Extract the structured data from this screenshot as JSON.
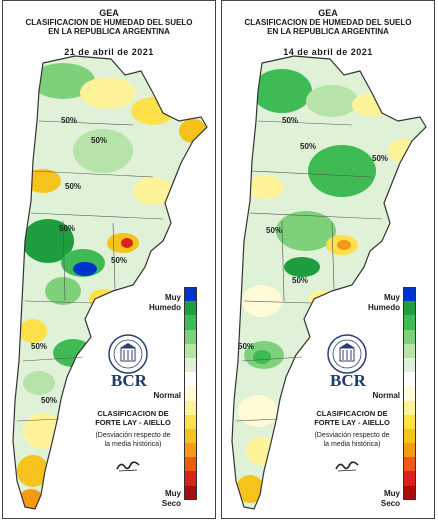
{
  "panels": [
    {
      "id": "left",
      "org": "GEA",
      "title_line1": "CLASIFICACION DE HUMEDAD DEL SUELO",
      "title_line2": "EN LA REPUBLICA ARGENTINA",
      "date": "21 de abril de 2021",
      "contour_labels": [
        "50%",
        "50%",
        "50%",
        "50%",
        "50%",
        "50%",
        "50%"
      ],
      "bcr_label": "BCR",
      "classification_line1": "CLASIFICACION DE",
      "classification_line2": "FORTE LAY - AIELLO",
      "desc_line1": "(Desviación respecto de",
      "desc_line2": "la media histórica)",
      "legend_top_line1": "Muy",
      "legend_top_line2": "Humedo",
      "legend_mid": "Normal",
      "legend_bot_line1": "Muy",
      "legend_bot_line2": "Seco"
    },
    {
      "id": "right",
      "org": "GEA",
      "title_line1": "CLASIFICACION DE HUMEDAD DEL SUELO",
      "title_line2": "EN LA REPUBLICA ARGENTINA",
      "date": "14 de abril de 2021",
      "contour_labels": [
        "50%",
        "50%",
        "50%",
        "50%",
        "50%",
        "50%"
      ],
      "bcr_label": "BCR",
      "classification_line1": "CLASIFICACION DE",
      "classification_line2": "FORTE LAY - AIELLO",
      "desc_line1": "(Desviación respecto de",
      "desc_line2": "la media histórica)",
      "legend_top_line1": "Muy",
      "legend_top_line2": "Humedo",
      "legend_mid": "Normal",
      "legend_bot_line1": "Muy",
      "legend_bot_line2": "Seco"
    }
  ],
  "legend_scale": [
    "#0033cc",
    "#1e9e3e",
    "#3fbb55",
    "#7ed07a",
    "#b6e3a8",
    "#dff1d6",
    "#ffffff",
    "#fffbd6",
    "#fff39a",
    "#fde04a",
    "#f6c21c",
    "#f49a16",
    "#ef5a12",
    "#d9221a",
    "#a50f0f"
  ],
  "colors": {
    "very_wet": "#0033cc",
    "wet": "#2aa84a",
    "normal": "#ffffff",
    "dry": "#f4c020",
    "very_dry": "#d9221a"
  }
}
